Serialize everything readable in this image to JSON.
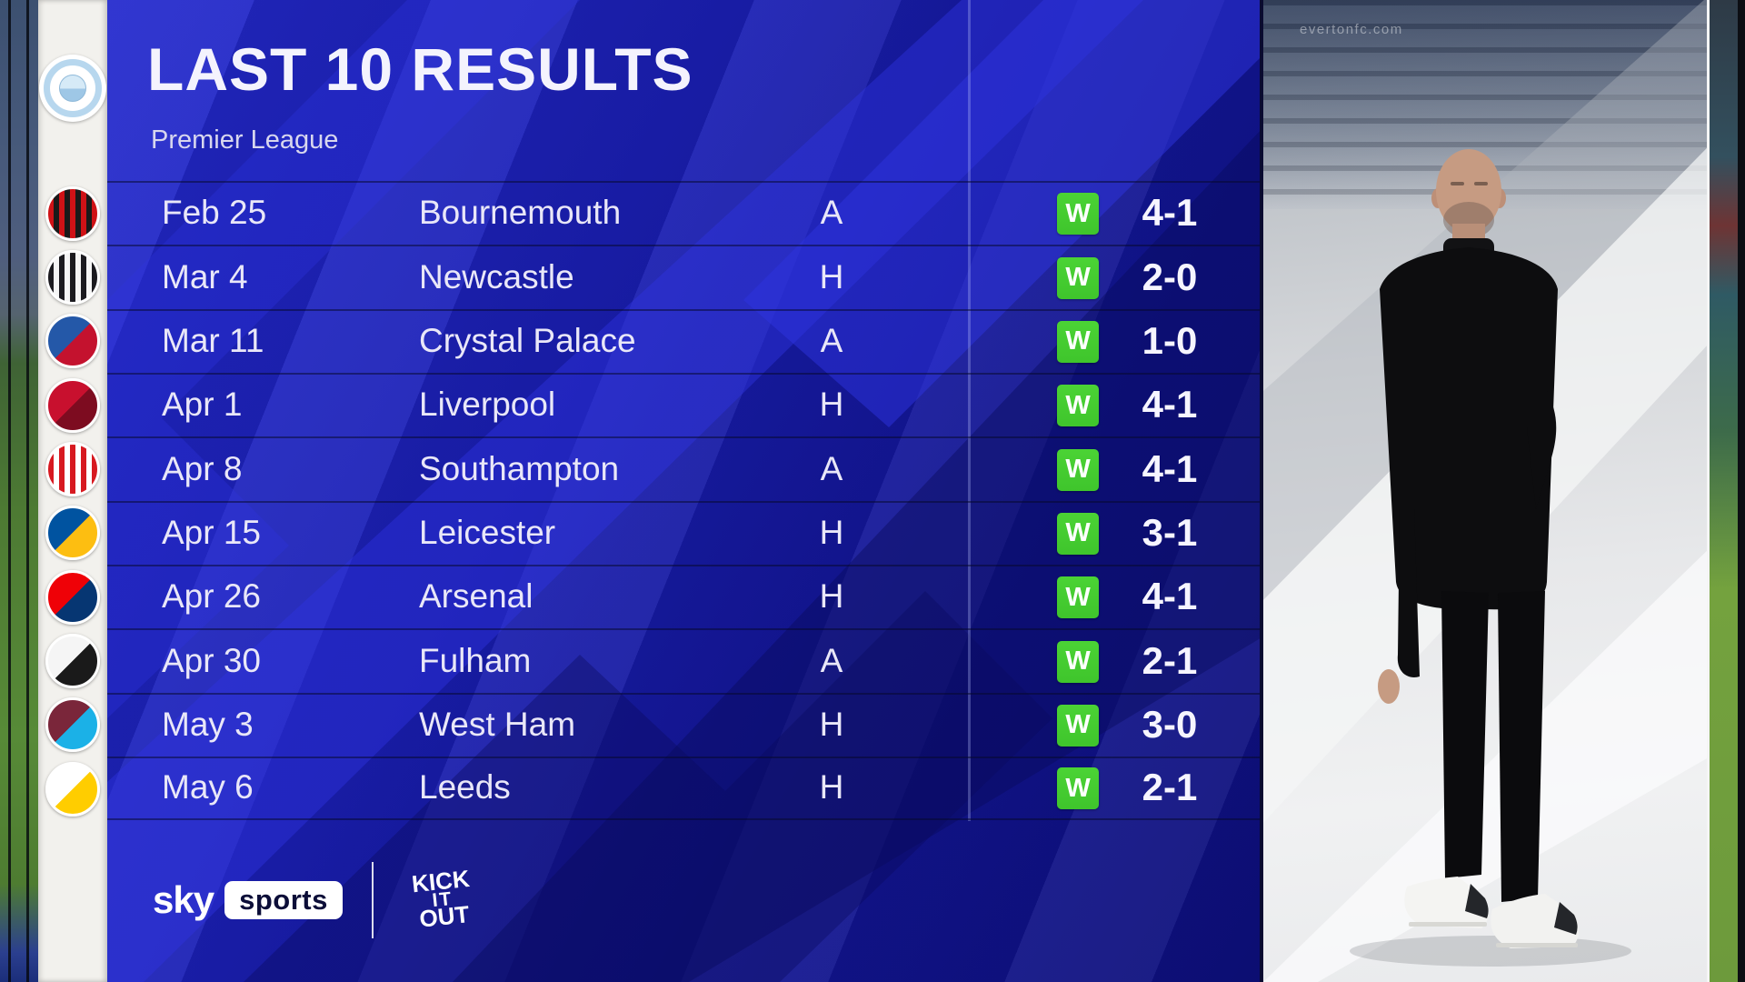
{
  "header": {
    "title": "LAST 10 RESULTS",
    "subtitle": "Premier League"
  },
  "club": {
    "name": "Manchester City"
  },
  "results": [
    {
      "date": "Feb 25",
      "opponent": "Bournemouth",
      "venue": "A",
      "result": "W",
      "score": "4-1",
      "badge": {
        "c1": "#cf1216",
        "c2": "#1a1a1a",
        "pattern": "stripes"
      }
    },
    {
      "date": "Mar 4",
      "opponent": "Newcastle",
      "venue": "H",
      "result": "W",
      "score": "2-0",
      "badge": {
        "c1": "#1b1a1f",
        "c2": "#f5f5f5",
        "pattern": "stripes"
      }
    },
    {
      "date": "Mar 11",
      "opponent": "Crystal Palace",
      "venue": "A",
      "result": "W",
      "score": "1-0",
      "badge": {
        "c1": "#2458a8",
        "c2": "#c4122e",
        "pattern": "split"
      }
    },
    {
      "date": "Apr 1",
      "opponent": "Liverpool",
      "venue": "H",
      "result": "W",
      "score": "4-1",
      "badge": {
        "c1": "#c8102e",
        "c2": "#7d0c20",
        "pattern": "split"
      }
    },
    {
      "date": "Apr 8",
      "opponent": "Southampton",
      "venue": "A",
      "result": "W",
      "score": "4-1",
      "badge": {
        "c1": "#d71920",
        "c2": "#ffffff",
        "pattern": "stripes"
      }
    },
    {
      "date": "Apr 15",
      "opponent": "Leicester",
      "venue": "H",
      "result": "W",
      "score": "3-1",
      "badge": {
        "c1": "#0053a0",
        "c2": "#fdbe11",
        "pattern": "split"
      }
    },
    {
      "date": "Apr 26",
      "opponent": "Arsenal",
      "venue": "H",
      "result": "W",
      "score": "4-1",
      "badge": {
        "c1": "#ef0107",
        "c2": "#063672",
        "pattern": "split"
      }
    },
    {
      "date": "Apr 30",
      "opponent": "Fulham",
      "venue": "A",
      "result": "W",
      "score": "2-1",
      "badge": {
        "c1": "#f5f5f5",
        "c2": "#1a1a1a",
        "pattern": "split"
      }
    },
    {
      "date": "May 3",
      "opponent": "West Ham",
      "venue": "H",
      "result": "W",
      "score": "3-0",
      "badge": {
        "c1": "#7a263a",
        "c2": "#1bb1e7",
        "pattern": "split"
      }
    },
    {
      "date": "May 6",
      "opponent": "Leeds",
      "venue": "H",
      "result": "W",
      "score": "2-1",
      "badge": {
        "c1": "#ffffff",
        "c2": "#ffcd00",
        "pattern": "split"
      }
    }
  ],
  "footer": {
    "sky": "sky",
    "sports": "sports",
    "kick_it_out": [
      "KICK",
      "IT",
      "OUT"
    ]
  },
  "photo": {
    "watermark": "evertonfc.com"
  },
  "colors": {
    "win_green": "#3fc52c",
    "panel_blue": "#1c21b4",
    "panel_blue_bright": "#262cce",
    "panel_blue_dark": "#0e107a",
    "text": "#e9e7f8"
  }
}
